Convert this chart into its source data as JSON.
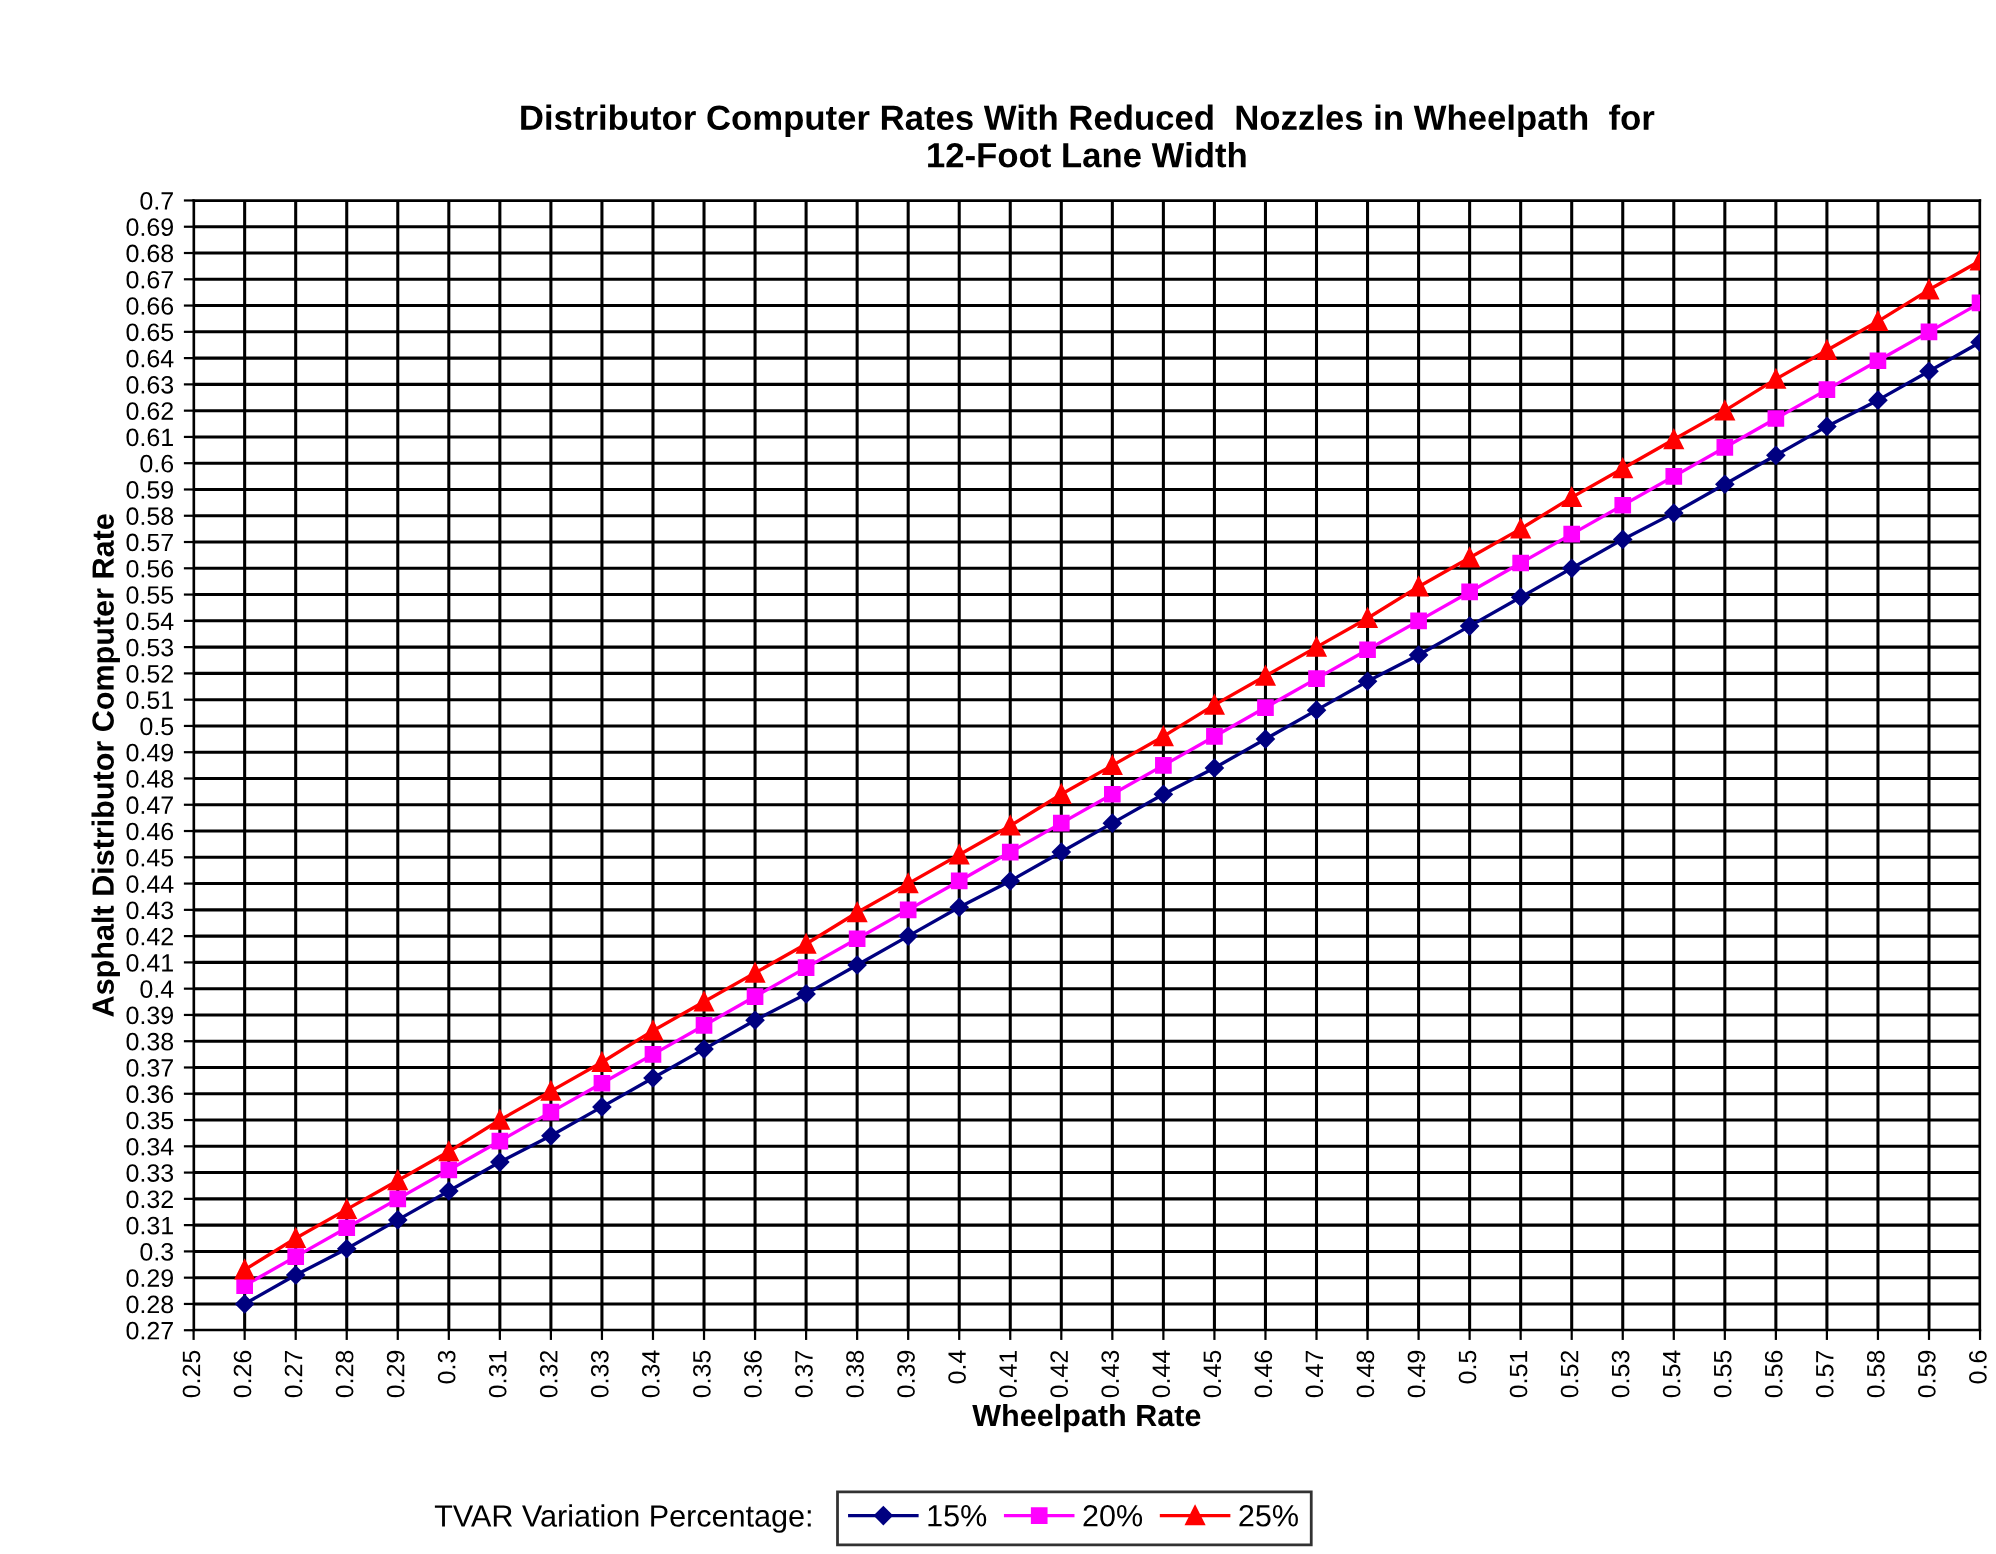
{
  "chart_data": {
    "type": "line",
    "title": "Distributor Computer Rates With Reduced  Nozzles in Wheelpath  for\n12-Foot Lane Width",
    "xlabel": "Wheelpath Rate",
    "ylabel": "Asphalt Distributor Computer Rate",
    "legend_title": "TVAR Variation Percentage:",
    "x": [
      0.26,
      0.27,
      0.28,
      0.29,
      0.3,
      0.31,
      0.32,
      0.33,
      0.34,
      0.35,
      0.36,
      0.37,
      0.38,
      0.39,
      0.4,
      0.41,
      0.42,
      0.43,
      0.44,
      0.45,
      0.46,
      0.47,
      0.48,
      0.49,
      0.5,
      0.51,
      0.52,
      0.53,
      0.54,
      0.55,
      0.56,
      0.57,
      0.58,
      0.59,
      0.6
    ],
    "series": [
      {
        "name": "15%",
        "color": "#000080",
        "marker": "diamond",
        "values": [
          0.28,
          0.291,
          0.301,
          0.312,
          0.323,
          0.334,
          0.344,
          0.355,
          0.366,
          0.377,
          0.388,
          0.398,
          0.409,
          0.42,
          0.431,
          0.441,
          0.452,
          0.463,
          0.474,
          0.484,
          0.495,
          0.506,
          0.517,
          0.527,
          0.538,
          0.549,
          0.56,
          0.571,
          0.581,
          0.592,
          0.603,
          0.614,
          0.624,
          0.635,
          0.646
        ]
      },
      {
        "name": "20%",
        "color": "#ff00ff",
        "marker": "square",
        "values": [
          0.287,
          0.298,
          0.309,
          0.32,
          0.331,
          0.342,
          0.353,
          0.364,
          0.375,
          0.386,
          0.397,
          0.408,
          0.419,
          0.43,
          0.441,
          0.452,
          0.463,
          0.474,
          0.485,
          0.496,
          0.507,
          0.518,
          0.529,
          0.54,
          0.551,
          0.562,
          0.573,
          0.584,
          0.595,
          0.606,
          0.617,
          0.628,
          0.639,
          0.65,
          0.661
        ]
      },
      {
        "name": "25%",
        "color": "#ff0000",
        "marker": "triangle",
        "values": [
          0.293,
          0.305,
          0.316,
          0.327,
          0.338,
          0.35,
          0.361,
          0.372,
          0.384,
          0.395,
          0.406,
          0.417,
          0.429,
          0.44,
          0.451,
          0.462,
          0.474,
          0.485,
          0.496,
          0.508,
          0.519,
          0.53,
          0.541,
          0.553,
          0.564,
          0.575,
          0.587,
          0.598,
          0.609,
          0.62,
          0.632,
          0.643,
          0.654,
          0.666,
          0.677
        ]
      }
    ],
    "xlim": [
      0.25,
      0.6
    ],
    "ylim": [
      0.27,
      0.7
    ],
    "xticks": [
      0.25,
      0.26,
      0.27,
      0.28,
      0.29,
      0.3,
      0.31,
      0.32,
      0.33,
      0.34,
      0.35,
      0.36,
      0.37,
      0.38,
      0.39,
      0.4,
      0.41,
      0.42,
      0.43,
      0.44,
      0.45,
      0.46,
      0.47,
      0.48,
      0.49,
      0.5,
      0.51,
      0.52,
      0.53,
      0.54,
      0.55,
      0.56,
      0.57,
      0.58,
      0.59,
      0.6
    ],
    "yticks": [
      0.27,
      0.28,
      0.29,
      0.3,
      0.31,
      0.32,
      0.33,
      0.34,
      0.35,
      0.36,
      0.37,
      0.38,
      0.39,
      0.4,
      0.41,
      0.42,
      0.43,
      0.44,
      0.45,
      0.46,
      0.47,
      0.48,
      0.49,
      0.5,
      0.51,
      0.52,
      0.53,
      0.54,
      0.55,
      0.56,
      0.57,
      0.58,
      0.59,
      0.6,
      0.61,
      0.62,
      0.63,
      0.64,
      0.65,
      0.66,
      0.67,
      0.68,
      0.69,
      0.7
    ],
    "grid": true,
    "legend": "bottom",
    "line_style": "solid"
  }
}
